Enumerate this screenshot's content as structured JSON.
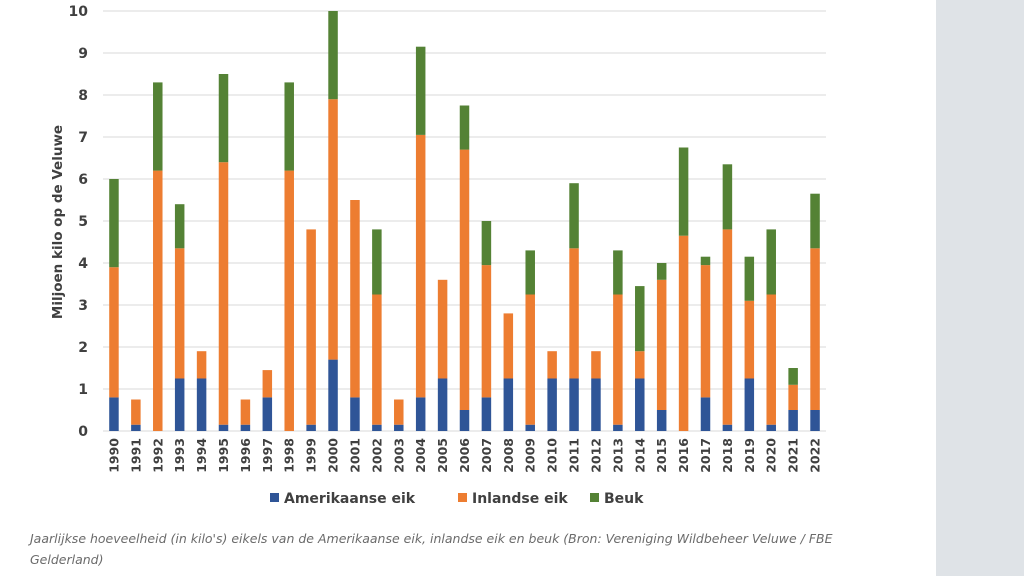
{
  "chart_data": {
    "type": "bar",
    "stacked": true,
    "title": "",
    "xlabel": "",
    "ylabel": "Miljoen kilo op de Veluwe",
    "ylim": [
      0,
      10
    ],
    "yticks": [
      0,
      1,
      2,
      3,
      4,
      5,
      6,
      7,
      8,
      9,
      10
    ],
    "grid": true,
    "legend_position": "bottom",
    "categories": [
      "1990",
      "1991",
      "1992",
      "1993",
      "1994",
      "1995",
      "1996",
      "1997",
      "1998",
      "1999",
      "2000",
      "2001",
      "2002",
      "2003",
      "2004",
      "2005",
      "2006",
      "2007",
      "2008",
      "2009",
      "2010",
      "2011",
      "2012",
      "2013",
      "2014",
      "2015",
      "2016",
      "2017",
      "2018",
      "2019",
      "2020",
      "2021",
      "2022"
    ],
    "series": [
      {
        "name": "Amerikaanse eik",
        "color": "#2f5597",
        "values": [
          0.8,
          0.15,
          0,
          1.25,
          1.25,
          0.15,
          0.15,
          0.8,
          0,
          0.15,
          1.7,
          0.8,
          0.15,
          0.15,
          0.8,
          1.25,
          0.5,
          0.8,
          1.25,
          0.15,
          1.25,
          1.25,
          1.25,
          0.15,
          1.25,
          0.5,
          0,
          0.8,
          0.15,
          1.25,
          0.15,
          0.5,
          0.5
        ]
      },
      {
        "name": "Inlandse eik",
        "color": "#ed7d31",
        "values": [
          3.1,
          0.6,
          6.2,
          3.1,
          0.65,
          6.25,
          0.6,
          0.65,
          6.2,
          4.65,
          6.2,
          4.7,
          3.1,
          0.6,
          6.25,
          2.35,
          6.2,
          3.15,
          1.55,
          3.1,
          0.65,
          3.1,
          0.65,
          3.1,
          0.65,
          3.1,
          4.65,
          3.15,
          4.65,
          1.85,
          3.1,
          0.6,
          3.85
        ]
      },
      {
        "name": "Beuk",
        "color": "#548235",
        "values": [
          2.1,
          0,
          2.1,
          1.05,
          0,
          2.1,
          0,
          0,
          2.1,
          0,
          2.1,
          0,
          1.55,
          0,
          2.1,
          0,
          1.05,
          1.05,
          0,
          1.05,
          0,
          1.55,
          0,
          1.05,
          1.55,
          0.4,
          2.1,
          0.2,
          1.55,
          1.05,
          1.55,
          0.4,
          1.3
        ]
      }
    ]
  },
  "caption": "Jaarlijkse hoeveelheid (in kilo's) eikels van de Amerikaanse eik, inlandse eik en beuk (Bron: Vereniging Wildbeheer Veluwe / FBE Gelderland)"
}
